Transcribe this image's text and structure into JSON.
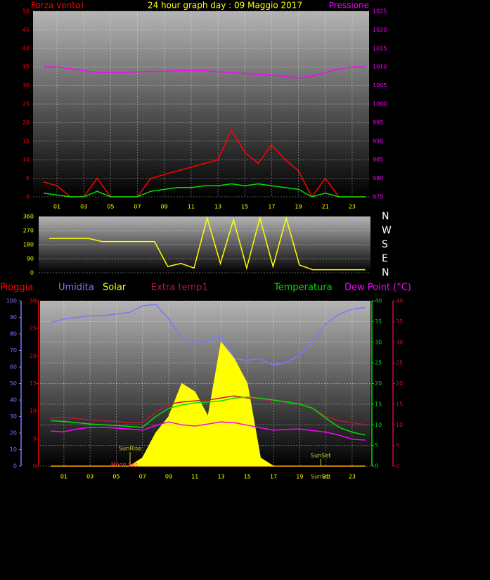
{
  "chart_data": [
    {
      "type": "line",
      "title": "24 hour graph day : 09 Maggio 2017",
      "y_label": "Forza vento)",
      "y2_label": "Pressione",
      "xlim": [
        -0.78,
        24.26
      ],
      "xticks": [
        {
          "value": 1,
          "label": "01"
        },
        {
          "value": 3,
          "label": "03"
        },
        {
          "value": 5,
          "label": "05"
        },
        {
          "value": 7,
          "label": "07"
        },
        {
          "value": 9,
          "label": "09"
        },
        {
          "value": 11,
          "label": "11"
        },
        {
          "value": 13,
          "label": "13"
        },
        {
          "value": 15,
          "label": "15"
        },
        {
          "value": 17,
          "label": "17"
        },
        {
          "value": 19,
          "label": "19"
        },
        {
          "value": 21,
          "label": "21"
        },
        {
          "value": 23,
          "label": "23"
        }
      ],
      "ylim": [
        0,
        50
      ],
      "yticks": [
        0,
        5,
        10,
        15,
        20,
        25,
        30,
        35,
        40,
        45,
        50
      ],
      "y2lim": [
        975,
        1025
      ],
      "y2ticks": [
        975,
        980,
        985,
        990,
        995,
        1000,
        1005,
        1010,
        1015,
        1020,
        1025
      ],
      "grid": true,
      "x": [
        0,
        1,
        2,
        3,
        4,
        5,
        6,
        7,
        8,
        9,
        10,
        11,
        12,
        13,
        14,
        15,
        16,
        17,
        18,
        19,
        20,
        21,
        22,
        23,
        24
      ],
      "series": [
        {
          "color": "#ff0000",
          "axis": "y",
          "values": [
            4,
            3,
            0,
            0,
            5,
            0,
            0,
            0,
            5,
            6,
            7,
            8,
            9,
            10,
            18,
            12,
            9,
            14,
            10,
            7,
            0,
            5,
            0,
            0,
            0
          ]
        },
        {
          "color": "#00e000",
          "axis": "y",
          "values": [
            1,
            0.5,
            0,
            0,
            1.5,
            0,
            0,
            0,
            1.5,
            2,
            2.5,
            2.5,
            3,
            3,
            3.5,
            3,
            3.5,
            3,
            2.5,
            2,
            0,
            1,
            0,
            0,
            0
          ]
        },
        {
          "color": "#ff00ff",
          "axis": "y2",
          "values": [
            1010,
            1010,
            1009.5,
            1009,
            1008.5,
            1008.5,
            1008.5,
            1008.7,
            1008.8,
            1008.8,
            1009,
            1009,
            1009,
            1008.7,
            1008.5,
            1008.2,
            1008,
            1007.8,
            1007.5,
            1007,
            1007.5,
            1008.5,
            1009.5,
            1010,
            1010
          ]
        }
      ]
    },
    {
      "type": "line",
      "xlim": [
        -0.8,
        24.4
      ],
      "ylim": [
        0,
        360
      ],
      "yticks": [
        0,
        90,
        180,
        270,
        360
      ],
      "y2lim": [
        0,
        360
      ],
      "y2ticks": [
        {
          "value": 360,
          "label": "N"
        },
        {
          "value": 270,
          "label": "W"
        },
        {
          "value": 180,
          "label": "S"
        },
        {
          "value": 90,
          "label": "E"
        },
        {
          "value": 0,
          "label": "N"
        }
      ],
      "grid": true,
      "x": [
        0,
        1,
        2,
        3,
        4,
        5,
        6,
        7,
        8,
        9,
        10,
        11,
        12,
        13,
        14,
        15,
        16,
        17,
        18,
        19,
        20,
        21,
        22,
        23,
        24
      ],
      "series": [
        {
          "color": "#ffff00",
          "axis": "y",
          "values": [
            220,
            220,
            220,
            220,
            200,
            200,
            200,
            200,
            200,
            40,
            60,
            30,
            350,
            60,
            340,
            30,
            350,
            40,
            350,
            50,
            20,
            20,
            20,
            20,
            20
          ]
        }
      ]
    },
    {
      "type": "line",
      "xlim": [
        -0.82,
        24.4
      ],
      "xticks": [
        {
          "value": 1,
          "label": "01"
        },
        {
          "value": 3,
          "label": "03"
        },
        {
          "value": 5,
          "label": "05"
        },
        {
          "value": 7,
          "label": "07"
        },
        {
          "value": 9,
          "label": "09"
        },
        {
          "value": 11,
          "label": "11"
        },
        {
          "value": 13,
          "label": "13"
        },
        {
          "value": 15,
          "label": "15"
        },
        {
          "value": 17,
          "label": "17"
        },
        {
          "value": 19,
          "label": "19"
        },
        {
          "value": 21,
          "label": "21"
        },
        {
          "value": 23,
          "label": "23"
        }
      ],
      "ylim": [
        0,
        30
      ],
      "yticks": [
        0,
        5,
        10,
        15,
        20,
        25,
        30
      ],
      "y2lim": [
        0,
        40
      ],
      "y2ticks": [
        0,
        5,
        10,
        15,
        20,
        25,
        30,
        35,
        40
      ],
      "y3lim": [
        0,
        100
      ],
      "y3ticks": [
        0,
        10,
        20,
        30,
        40,
        50,
        60,
        70,
        80,
        90,
        100
      ],
      "y4lim": [
        0,
        40
      ],
      "y4ticks": [
        0,
        5,
        10,
        15,
        20,
        25,
        30,
        35,
        40
      ],
      "grid": true,
      "x": [
        0,
        1,
        2,
        3,
        4,
        5,
        6,
        7,
        8,
        9,
        10,
        11,
        12,
        13,
        14,
        15,
        16,
        17,
        18,
        19,
        20,
        21,
        22,
        23,
        24
      ],
      "series": [
        {
          "name": "Pioggia",
          "color": "#ff0000",
          "axis": "y",
          "values": [
            0,
            0,
            0,
            0,
            0,
            0,
            0,
            0,
            0,
            0,
            0,
            0,
            0,
            0,
            0,
            0,
            0,
            0,
            0,
            0,
            0,
            0,
            0,
            0,
            0
          ]
        },
        {
          "name": "Umidita",
          "color": "#7878ff",
          "axis": "y3",
          "values": [
            87,
            89,
            90,
            91,
            91,
            92,
            93,
            97,
            98,
            89,
            78,
            74,
            76,
            79,
            65,
            64,
            65,
            61,
            63,
            67,
            75,
            86,
            92,
            95,
            96
          ]
        },
        {
          "name": "Solar",
          "color": "#ffff00",
          "axis": "y2",
          "fill": true,
          "values": [
            0,
            0,
            0,
            0,
            0,
            0,
            0,
            2,
            8,
            12,
            20,
            18,
            12,
            30,
            26,
            20,
            2,
            0,
            0,
            0,
            0,
            0,
            0,
            0,
            0
          ]
        },
        {
          "name": "Extra temp1",
          "color": "#c0143c",
          "axis": "y2",
          "values": [
            11.6,
            11.8,
            11.5,
            11.2,
            11,
            10.8,
            10.5,
            10.5,
            13,
            15,
            15.5,
            15.8,
            16,
            16.5,
            17,
            16.5,
            16.2,
            15.8,
            15.5,
            15,
            14,
            12,
            11,
            10.5,
            10
          ]
        },
        {
          "name": "Temperatura",
          "color": "#00e000",
          "axis": "y2",
          "values": [
            11,
            10.8,
            10.5,
            10.2,
            10,
            9.8,
            9.6,
            9.4,
            12,
            14,
            14.8,
            15.3,
            15.5,
            15.8,
            16.5,
            16.7,
            16.4,
            16,
            15.5,
            15,
            14,
            11.6,
            9.4,
            8.2,
            7.5
          ]
        },
        {
          "name": "Dew Point (°C)",
          "color": "#ff00ff",
          "axis": "y4",
          "values": [
            8.5,
            8.3,
            9,
            9.4,
            9.4,
            9.2,
            9,
            8.7,
            9.8,
            10.7,
            10,
            9.7,
            10.2,
            10.7,
            10.5,
            9.9,
            9.3,
            8.7,
            8.9,
            9,
            8.6,
            8.2,
            7.5,
            6.5,
            6.3
          ]
        }
      ],
      "annotations": [
        {
          "text": "SunRise",
          "x": 6.05
        },
        {
          "text": "SunSet",
          "x": 20.6
        },
        {
          "text": "Moon Set",
          "x": 5.6
        },
        {
          "text": "SunSet",
          "x": 20.6
        }
      ]
    }
  ]
}
